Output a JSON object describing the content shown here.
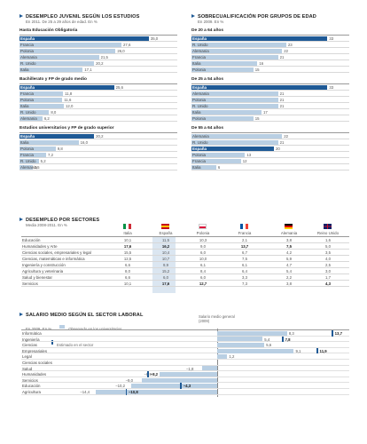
{
  "colors": {
    "accent": "#1f5a96",
    "light": "#b9cfe3",
    "spain_col": "#dbe6f1"
  },
  "chart_data": [
    {
      "type": "bar",
      "title": "DESEMPLEO JUVENIL SEGÚN LOS ESTUDIOS",
      "subtitle": "En 2011. De 25 a 29 años de edad. En %",
      "groups": [
        {
          "name": "Hasta Educación Obligatoria",
          "rows": [
            {
              "label": "España",
              "value": 35.0,
              "display": "35,0",
              "highlight": true
            },
            {
              "label": "Francia",
              "value": 27.6,
              "display": "27,6"
            },
            {
              "label": "Polonia",
              "value": 26.0,
              "display": "26,0"
            },
            {
              "label": "Alemania",
              "value": 21.5,
              "display": "21,5"
            },
            {
              "label": "R. Unido",
              "value": 20.2,
              "display": "20,2"
            },
            {
              "label": "Italia",
              "value": 17.1,
              "display": "17,1"
            }
          ]
        },
        {
          "name": "Bachillerato y FP de grado medio",
          "rows": [
            {
              "label": "España",
              "value": 25.6,
              "display": "25,6",
              "highlight": true
            },
            {
              "label": "Francia",
              "value": 11.8,
              "display": "11,8"
            },
            {
              "label": "Polonia",
              "value": 11.6,
              "display": "11,6"
            },
            {
              "label": "Italia",
              "value": 12.0,
              "display": "12,0"
            },
            {
              "label": "R. Unido",
              "value": 8.0,
              "display": "8,0"
            },
            {
              "label": "Alemania",
              "value": 6.2,
              "display": "6,2"
            }
          ]
        },
        {
          "name": "Estudios universitarios y FP de grado superior",
          "rows": [
            {
              "label": "España",
              "value": 20.2,
              "display": "20,2",
              "highlight": true
            },
            {
              "label": "Italia",
              "value": 16.0,
              "display": "16,0"
            },
            {
              "label": "Polonia",
              "value": 9.8,
              "display": "9,8"
            },
            {
              "label": "Francia",
              "value": 7.2,
              "display": "7,2"
            },
            {
              "label": "R. Unido",
              "value": 5.2,
              "display": "5,2"
            },
            {
              "label": "Alemania",
              "value": 3.5,
              "display": "3,5"
            }
          ]
        }
      ]
    },
    {
      "type": "bar",
      "title": "SOBRECUALIFICACIÓN POR GRUPOS DE EDAD",
      "subtitle": "En 2009. En %",
      "groups": [
        {
          "name": "De 20 a 64 años",
          "rows": [
            {
              "label": "España",
              "value": 33,
              "display": "33",
              "highlight": true
            },
            {
              "label": "R. Unido",
              "value": 23,
              "display": "23"
            },
            {
              "label": "Alemania",
              "value": 22,
              "display": "22"
            },
            {
              "label": "Francia",
              "value": 21,
              "display": "21"
            },
            {
              "label": "Italia",
              "value": 16,
              "display": "16"
            },
            {
              "label": "Polonia",
              "value": 15,
              "display": "15"
            }
          ]
        },
        {
          "name": "De 25 a 54 años",
          "rows": [
            {
              "label": "España",
              "value": 33,
              "display": "33",
              "highlight": true
            },
            {
              "label": "Alemania",
              "value": 21,
              "display": "21"
            },
            {
              "label": "Polonia",
              "value": 21,
              "display": "21"
            },
            {
              "label": "R. Unido",
              "value": 21,
              "display": "21"
            },
            {
              "label": "Italia",
              "value": 17,
              "display": "17"
            },
            {
              "label": "Polonia",
              "value": 15,
              "display": "15"
            }
          ]
        },
        {
          "name": "De 55 a 64 años",
          "rows": [
            {
              "label": "Alemania",
              "value": 22,
              "display": "22"
            },
            {
              "label": "R. Unido",
              "value": 21,
              "display": "21"
            },
            {
              "label": "España",
              "value": 20,
              "display": "20",
              "highlight": true
            },
            {
              "label": "Polonia",
              "value": 13,
              "display": "13"
            },
            {
              "label": "Francia",
              "value": 12,
              "display": "12"
            },
            {
              "label": "Italia",
              "value": 6,
              "display": "6"
            }
          ]
        }
      ]
    },
    {
      "type": "table",
      "title": "DESEMPLEO POR SECTORES",
      "subtitle": "Media 2008-2011. En %",
      "columns": [
        "Italia",
        "España",
        "Polonia",
        "Francia",
        "Alemania",
        "Reino Unido"
      ],
      "rows": [
        {
          "label": "Educación",
          "values": [
            "10,1",
            "11,5",
            "10,3",
            "2,1",
            "3,8",
            "1,6"
          ]
        },
        {
          "label": "Humanidades y Arte",
          "values": [
            "17,6",
            "16,2",
            "9,0",
            "13,7",
            "7,5",
            "5,0"
          ],
          "bold": [
            0,
            1,
            3,
            4
          ]
        },
        {
          "label": "Ciencias sociales, empresariales y legal",
          "values": [
            "15,5",
            "10,4",
            "6,0",
            "6,7",
            "4,2",
            "3,5"
          ]
        },
        {
          "label": "Ciencias, matemáticas e informática",
          "values": [
            "12,5",
            "10,7",
            "10,0",
            "7,5",
            "5,9",
            "4,0"
          ]
        },
        {
          "label": "Ingeniería y construcción",
          "values": [
            "6,6",
            "9,9",
            "6,1",
            "6,1",
            "4,7",
            "2,5"
          ]
        },
        {
          "label": "Agricultura y veterinaria",
          "values": [
            "8,0",
            "15,2",
            "8,4",
            "6,4",
            "5,4",
            "3,0"
          ]
        },
        {
          "label": "Salud y bienestar",
          "values": [
            "6,6",
            "6,0",
            "6,0",
            "3,3",
            "2,2",
            "1,7"
          ]
        },
        {
          "label": "Servicios",
          "values": [
            "10,1",
            "17,6",
            "12,7",
            "7,3",
            "3,8",
            "4,3"
          ],
          "bold": [
            1,
            2,
            5
          ]
        }
      ]
    },
    {
      "type": "bar",
      "title": "SALARIO MEDIO SEGÚN EL SECTOR LABORAL",
      "subtitle": "En 2009. En %",
      "legend": [
        "Observado en los universitarios",
        "Estimado en el sector"
      ],
      "note": "Salario medio general (2009)",
      "xlim": [
        -16,
        16
      ],
      "rows": [
        {
          "label": "Informática",
          "observed": 8.3,
          "estimated": 13.7,
          "observed_display": "8,3",
          "estimated_display": "13,7"
        },
        {
          "label": "Ingeniería",
          "observed": 5.4,
          "estimated": 7.8,
          "observed_display": "5,4",
          "estimated_display": "7,8"
        },
        {
          "label": "Ciencias",
          "observed": 5.6,
          "estimated": null,
          "observed_display": "5,6",
          "estimated_display": ""
        },
        {
          "label": "Empresariales",
          "observed": 9.1,
          "estimated": 11.9,
          "observed_display": "9,1",
          "estimated_display": "11,9"
        },
        {
          "label": "Legal",
          "observed": 1.2,
          "estimated": null,
          "observed_display": "1,2",
          "estimated_display": ""
        },
        {
          "label": "Ciencias sociales",
          "observed": 0.0,
          "estimated": null,
          "observed_display": "",
          "estimated_display": ""
        },
        {
          "label": "Salud",
          "observed": -1.8,
          "estimated": null,
          "observed_display": "−1,8",
          "estimated_display": ""
        },
        {
          "label": "Humanidades",
          "observed": -6.8,
          "estimated": -8.2,
          "observed_display": "−6,8",
          "estimated_display": "−8,2"
        },
        {
          "label": "Servicios",
          "observed": -9.0,
          "estimated": null,
          "observed_display": "−9,0",
          "estimated_display": ""
        },
        {
          "label": "Educación",
          "observed": -10.2,
          "estimated": -4.3,
          "observed_display": "−10,2",
          "estimated_display": "−4,3"
        },
        {
          "label": "Agricultura",
          "observed": -14.4,
          "estimated": -10.8,
          "observed_display": "−14,4",
          "estimated_display": "−10,8"
        }
      ]
    }
  ]
}
